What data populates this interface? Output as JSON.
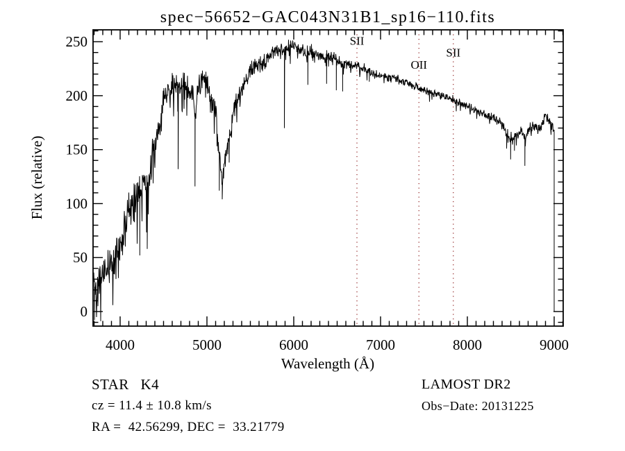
{
  "footer": {
    "class_line": "STAR   K4",
    "survey": "LAMOST DR2",
    "cz_line": "cz = 11.4 ± 10.8 km/s",
    "obs_date_line": "Obs−Date: 20131225",
    "radec_line": "RA =  42.56299, DEC =  33.21779"
  },
  "chart_data": {
    "type": "line",
    "title": "spec−56652−GAC043N31B1_sp16−110.fits",
    "xlabel": "Wavelength (Å)",
    "ylabel": "Flux (relative)",
    "xlim": [
      3688,
      9104
    ],
    "ylim": [
      -13.5,
      261
    ],
    "x_ticks": [
      4000,
      5000,
      6000,
      7000,
      8000,
      9000
    ],
    "y_ticks": [
      0,
      50,
      100,
      150,
      200,
      250
    ],
    "x_minor_step": 100,
    "y_minor_step": 10,
    "grid": false,
    "background": "#ffffff",
    "line_color": "#000000",
    "marker_line_color": "#993232",
    "line_markers": [
      {
        "label": "SII",
        "wavelength": 6728,
        "label_flux": 251
      },
      {
        "label": "OII",
        "wavelength": 7442,
        "label_flux": 229
      },
      {
        "label": "SII",
        "wavelength": 7838,
        "label_flux": 240
      }
    ],
    "spectrum": [
      [
        3696,
        35,
        26
      ],
      [
        3712,
        22,
        26
      ],
      [
        3740,
        25,
        24
      ],
      [
        3780,
        30,
        24
      ],
      [
        3820,
        34,
        22
      ],
      [
        3860,
        40,
        24
      ],
      [
        3900,
        48,
        26
      ],
      [
        3935,
        42,
        22
      ],
      [
        3970,
        55,
        24
      ],
      [
        4010,
        66,
        24
      ],
      [
        4060,
        80,
        26
      ],
      [
        4110,
        90,
        26
      ],
      [
        4160,
        103,
        26
      ],
      [
        4210,
        110,
        28
      ],
      [
        4240,
        106,
        30
      ],
      [
        4270,
        122,
        26
      ],
      [
        4310,
        116,
        26
      ],
      [
        4345,
        130,
        26
      ],
      [
        4380,
        142,
        24
      ],
      [
        4420,
        158,
        22
      ],
      [
        4460,
        176,
        20
      ],
      [
        4500,
        192,
        18
      ],
      [
        4540,
        202,
        17
      ],
      [
        4590,
        209,
        17
      ],
      [
        4640,
        207,
        17
      ],
      [
        4690,
        211,
        16
      ],
      [
        4740,
        209,
        16
      ],
      [
        4790,
        204,
        16
      ],
      [
        4830,
        197,
        18
      ],
      [
        4862,
        184,
        20
      ],
      [
        4900,
        208,
        14
      ],
      [
        4950,
        216,
        13
      ],
      [
        5000,
        209,
        14
      ],
      [
        5050,
        197,
        15
      ],
      [
        5100,
        183,
        16
      ],
      [
        5140,
        148,
        16
      ],
      [
        5175,
        118,
        8
      ],
      [
        5210,
        146,
        13
      ],
      [
        5255,
        159,
        15
      ],
      [
        5300,
        183,
        13
      ],
      [
        5350,
        196,
        12
      ],
      [
        5400,
        208,
        12
      ],
      [
        5450,
        214,
        11
      ],
      [
        5500,
        221,
        11
      ],
      [
        5550,
        227,
        11
      ],
      [
        5600,
        230,
        11
      ],
      [
        5650,
        229,
        11
      ],
      [
        5700,
        236,
        10
      ],
      [
        5750,
        240,
        10
      ],
      [
        5800,
        242,
        9
      ],
      [
        5850,
        244,
        9
      ],
      [
        5890,
        240,
        9
      ],
      [
        5950,
        246,
        8
      ],
      [
        6000,
        248,
        8
      ],
      [
        6050,
        245,
        8
      ],
      [
        6100,
        242,
        8
      ],
      [
        6150,
        240,
        8
      ],
      [
        6200,
        241,
        8
      ],
      [
        6250,
        239,
        8
      ],
      [
        6300,
        237,
        8
      ],
      [
        6350,
        236,
        8
      ],
      [
        6400,
        237,
        8
      ],
      [
        6450,
        235,
        8
      ],
      [
        6500,
        232,
        8
      ],
      [
        6565,
        229,
        7
      ],
      [
        6620,
        230,
        6
      ],
      [
        6680,
        229,
        6
      ],
      [
        6730,
        228,
        6
      ],
      [
        6800,
        226,
        6
      ],
      [
        6870,
        222,
        6
      ],
      [
        6940,
        220,
        6
      ],
      [
        7000,
        219,
        5
      ],
      [
        7100,
        217,
        5
      ],
      [
        7200,
        215,
        5
      ],
      [
        7300,
        212,
        5
      ],
      [
        7440,
        207,
        5
      ],
      [
        7550,
        204,
        5
      ],
      [
        7650,
        202,
        5
      ],
      [
        7750,
        199,
        5
      ],
      [
        7850,
        196,
        5
      ],
      [
        7950,
        192,
        5
      ],
      [
        8050,
        188,
        5
      ],
      [
        8150,
        184,
        5
      ],
      [
        8250,
        181,
        5
      ],
      [
        8350,
        177,
        6
      ],
      [
        8420,
        170,
        7
      ],
      [
        8470,
        162,
        8
      ],
      [
        8520,
        159,
        8
      ],
      [
        8570,
        164,
        8
      ],
      [
        8620,
        168,
        7
      ],
      [
        8665,
        162,
        7
      ],
      [
        8710,
        170,
        7
      ],
      [
        8760,
        172,
        7
      ],
      [
        8810,
        169,
        7
      ],
      [
        8860,
        174,
        7
      ],
      [
        8910,
        181,
        7
      ],
      [
        8950,
        175,
        7
      ],
      [
        9000,
        168,
        7
      ]
    ],
    "absorption_lines": [
      [
        3704,
        -8
      ],
      [
        4226,
        52
      ],
      [
        4312,
        58
      ],
      [
        4668,
        132
      ],
      [
        4862,
        116
      ],
      [
        5142,
        112
      ],
      [
        5176,
        104
      ],
      [
        5256,
        138
      ],
      [
        5892,
        170
      ],
      [
        6162,
        210
      ],
      [
        6378,
        211
      ],
      [
        6490,
        205
      ],
      [
        6563,
        204
      ],
      [
        6870,
        213
      ],
      [
        8452,
        151
      ],
      [
        8498,
        141
      ],
      [
        8542,
        149
      ],
      [
        8662,
        135
      ],
      [
        9000,
        0
      ]
    ],
    "noise_seed": 42
  }
}
